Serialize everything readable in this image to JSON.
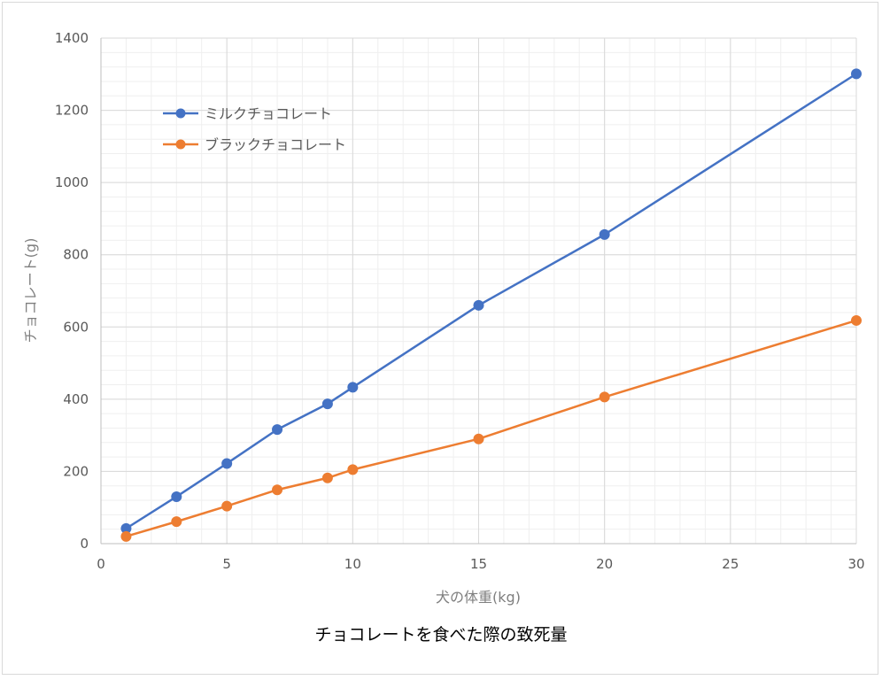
{
  "chart_data": {
    "type": "line",
    "xlabel": "犬の体重(kg)",
    "ylabel": "チョコレート(g)",
    "caption": "チョコレートを食べた際の致死量",
    "xlim": [
      0,
      30
    ],
    "ylim": [
      0,
      1400
    ],
    "x_ticks": [
      0,
      5,
      10,
      15,
      20,
      25,
      30
    ],
    "y_ticks": [
      0,
      200,
      400,
      600,
      800,
      1000,
      1200,
      1400
    ],
    "grid": true,
    "legend_position": "top-left",
    "x": [
      1,
      3,
      5,
      7,
      9,
      10,
      15,
      20,
      30
    ],
    "series": [
      {
        "name": "ミルクチョコレート",
        "color": "#4472c4",
        "values": [
          42,
          130,
          222,
          316,
          387,
          433,
          660,
          856,
          1301
        ]
      },
      {
        "name": "ブラックチョコレート",
        "color": "#ed7d31",
        "values": [
          20,
          61,
          104,
          149,
          182,
          205,
          290,
          406,
          618
        ]
      }
    ]
  }
}
